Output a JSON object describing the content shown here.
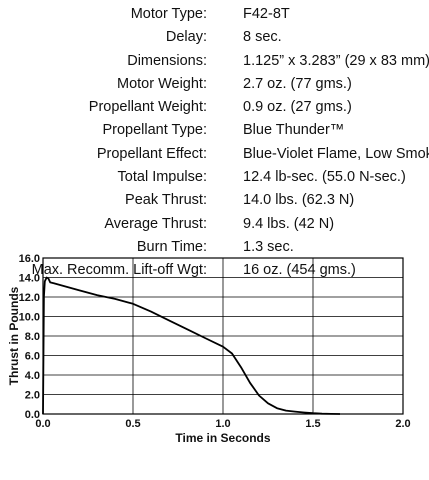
{
  "specs": [
    {
      "label": "Motor Type:",
      "value": "F42-8T"
    },
    {
      "label": "Delay:",
      "value": "8 sec."
    },
    {
      "label": "Dimensions:",
      "value": "1.125” x 3.283” (29 x 83 mm)"
    },
    {
      "label": "Motor Weight:",
      "value": "2.7 oz. (77 gms.)"
    },
    {
      "label": "Propellant Weight:",
      "value": "0.9 oz. (27 gms.)"
    },
    {
      "label": "Propellant Type:",
      "value": "Blue Thunder™"
    },
    {
      "label": "Propellant Effect:",
      "value": "Blue-Violet Flame, Low Smoke"
    },
    {
      "label": "Total Impulse:",
      "value": "12.4 lb-sec. (55.0 N-sec.)"
    },
    {
      "label": "Peak Thrust:",
      "value": "14.0 lbs. (62.3 N)"
    },
    {
      "label": "Average Thrust:",
      "value": "9.4 lbs. (42 N)"
    },
    {
      "label": "Burn Time:",
      "value": "1.3 sec."
    },
    {
      "label": "Max. Recomm. Lift-off Wgt:",
      "value": "16 oz. (454 gms.)"
    }
  ],
  "chart_data": {
    "type": "line",
    "xlabel": "Time in Seconds",
    "ylabel": "Thrust in Pounds",
    "xlim": [
      0,
      2
    ],
    "ylim": [
      0,
      16
    ],
    "xticks": [
      "0.0",
      "0.5",
      "1.0",
      "1.5",
      "2.0"
    ],
    "yticks": [
      "0.0",
      "2.0",
      "4.0",
      "6.0",
      "8.0",
      "10.0",
      "12.0",
      "14.0",
      "16.0"
    ],
    "grid": true,
    "line_color": "#000000",
    "series": [
      {
        "x": [
          0,
          0.005,
          0.01,
          0.02,
          0.03,
          0.04,
          0.06,
          0.1,
          0.2,
          0.3,
          0.4,
          0.5,
          0.6,
          0.7,
          0.8,
          0.9,
          1.0,
          1.05,
          1.1,
          1.15,
          1.2,
          1.25,
          1.3,
          1.35,
          1.4,
          1.45,
          1.5,
          1.55,
          1.6,
          1.65
        ],
        "y": [
          0,
          12.0,
          13.6,
          14.0,
          13.9,
          13.5,
          13.4,
          13.2,
          12.7,
          12.2,
          11.8,
          11.3,
          10.5,
          9.6,
          8.7,
          7.8,
          6.9,
          6.2,
          4.8,
          3.2,
          1.9,
          1.1,
          0.6,
          0.35,
          0.25,
          0.15,
          0.08,
          0.03,
          0.01,
          0.0
        ]
      }
    ]
  }
}
